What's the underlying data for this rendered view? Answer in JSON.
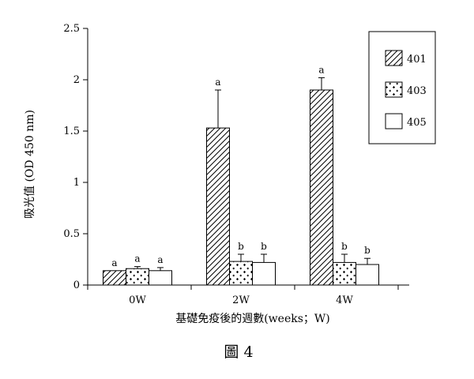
{
  "chart_data": {
    "type": "bar",
    "categories": [
      "0W",
      "2W",
      "4W"
    ],
    "series": [
      {
        "name": "401",
        "pattern": "hatch",
        "values": [
          0.14,
          1.53,
          1.9
        ],
        "errors": [
          0.0,
          0.37,
          0.12
        ],
        "significance": [
          "a",
          "a",
          "a"
        ]
      },
      {
        "name": "403",
        "pattern": "dots",
        "values": [
          0.16,
          0.23,
          0.22
        ],
        "errors": [
          0.02,
          0.07,
          0.08
        ],
        "significance": [
          "a",
          "b",
          "b"
        ]
      },
      {
        "name": "405",
        "pattern": "blank",
        "values": [
          0.14,
          0.22,
          0.2
        ],
        "errors": [
          0.03,
          0.08,
          0.06
        ],
        "significance": [
          "a",
          "b",
          "b"
        ]
      }
    ],
    "ylim": [
      0,
      2.5
    ],
    "yticks": [
      "0",
      "0.5",
      "1",
      "1.5",
      "2",
      "2.5"
    ],
    "ytick_values": [
      0,
      0.5,
      1,
      1.5,
      2,
      2.5
    ],
    "ylabel": "吸光值 (OD 450 nm)",
    "xlabel": "基礎免疫後的週數(weeks；W)",
    "legend": {
      "position": "top-right",
      "entries": [
        "401",
        "403",
        "405"
      ]
    },
    "grid": false
  },
  "caption": "圖 4",
  "colors": {
    "ink": "#000000",
    "background": "#ffffff"
  }
}
